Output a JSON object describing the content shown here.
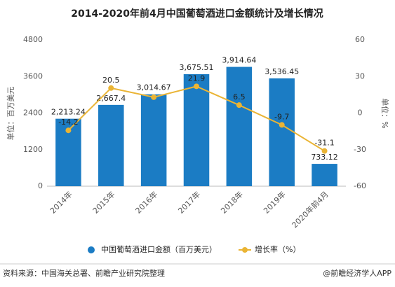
{
  "chart_data": {
    "type": "bar-line",
    "title": "2014-2020年前4月中国葡萄酒进口金额统计及增长情况",
    "categories": [
      "2014年",
      "2015年",
      "2016年",
      "2017年",
      "2018年",
      "2019年",
      "2020年前4月"
    ],
    "series": [
      {
        "name": "中国葡萄酒进口金额（百万美元）",
        "type": "bar",
        "color": "#1b7cc4",
        "values": [
          2213.24,
          2667.4,
          3014.67,
          3675.51,
          3914.64,
          3536.45,
          733.12
        ],
        "value_labels": [
          "2,213.24",
          "2,667.4",
          "3,014.67",
          "3,675.51",
          "3,914.64",
          "3,536.45",
          "733.12"
        ]
      },
      {
        "name": "增长率（%）",
        "type": "line",
        "axis": "y2",
        "color": "#eab434",
        "values": [
          -14.2,
          20.5,
          13.0,
          21.9,
          6.5,
          -9.7,
          -31.1
        ],
        "value_labels": [
          "-14.2",
          "20.5",
          null,
          "21.9",
          "6.5",
          "-9.7",
          "-31.1"
        ]
      }
    ],
    "ylabel": "单位：百万美元",
    "y2label": "单位：%",
    "ylim": [
      0,
      4800
    ],
    "yticks": [
      0,
      1200,
      2400,
      3600,
      4800
    ],
    "y2lim": [
      -60,
      60
    ],
    "y2ticks": [
      -60,
      -30,
      0,
      30,
      60
    ],
    "source": "资料来源：中国海关总署、前瞻产业研究院整理",
    "credit": "@前瞻经济学人APP"
  }
}
